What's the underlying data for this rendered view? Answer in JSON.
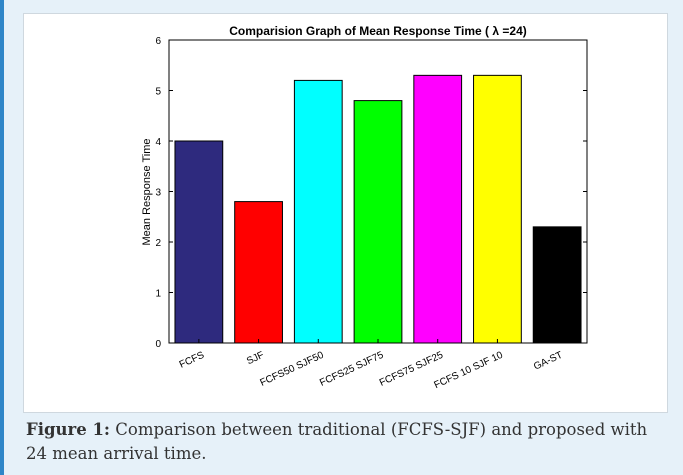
{
  "caption": {
    "label": "Figure 1:",
    "text": "Comparison between traditional (FCFS-SJF) and proposed with 24 mean arrival time."
  },
  "chart_data": {
    "type": "bar",
    "title": "Comparision Graph of Mean Response Time ( λ =24)",
    "xlabel": "",
    "ylabel": "Mean Response Time",
    "ylim": [
      0,
      6
    ],
    "yticks": [
      0,
      1,
      2,
      3,
      4,
      5,
      6
    ],
    "categories": [
      "FCFS",
      "SJF",
      "FCFS50 SJF50",
      "FCFS25 SJF75",
      "FCFS75 SJF25",
      "FCFS 10 SJF 10",
      "GA-ST"
    ],
    "values": [
      4.0,
      2.8,
      5.2,
      4.8,
      5.3,
      5.3,
      2.3
    ],
    "colors": [
      "#2e2a7e",
      "#ff0000",
      "#00ffff",
      "#00ff00",
      "#ff00ff",
      "#ffff00",
      "#000000"
    ],
    "grid": false
  }
}
